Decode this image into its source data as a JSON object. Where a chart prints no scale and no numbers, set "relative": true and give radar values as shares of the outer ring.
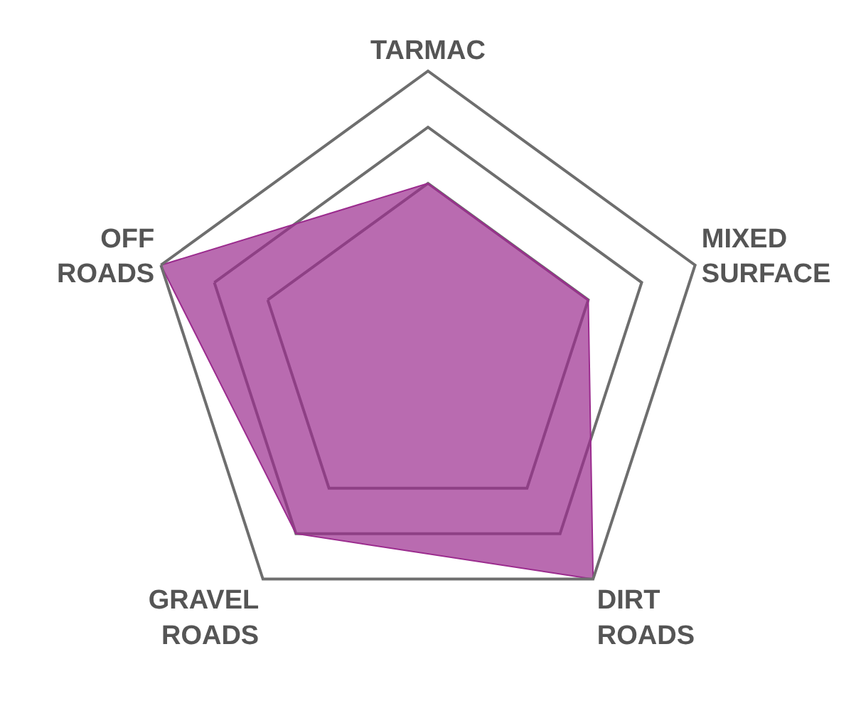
{
  "chart_data": {
    "type": "radar",
    "relative": true,
    "categories": [
      "TARMAC",
      "MIXED\nSURFACE",
      "DIRT\nROADS",
      "GRAVEL\nROADS",
      "OFF\nROADS"
    ],
    "series": [
      {
        "color": "#9b2c8e",
        "values": [
          0.6,
          0.6,
          1,
          0.8,
          1
        ]
      }
    ],
    "grid": true,
    "legend": false
  }
}
